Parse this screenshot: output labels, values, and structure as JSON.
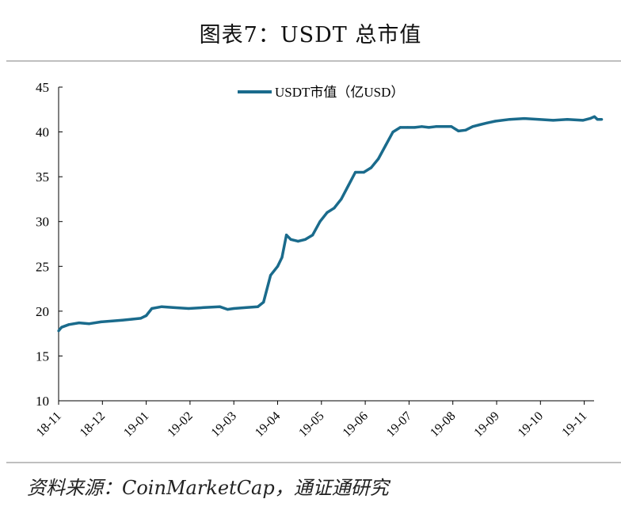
{
  "figure": {
    "title": "图表7：USDT 总市值",
    "source": "资料来源：CoinMarketCap，通证通研究"
  },
  "chart_data": {
    "type": "line",
    "title": "图表7：USDT 总市值",
    "xlabel": "",
    "ylabel": "",
    "ylim": [
      10,
      45
    ],
    "yticks": [
      10,
      15,
      20,
      25,
      30,
      35,
      40,
      45
    ],
    "xticks": [
      "18-11",
      "18-12",
      "19-01",
      "19-02",
      "19-03",
      "19-04",
      "19-05",
      "19-06",
      "19-07",
      "19-08",
      "19-09",
      "19-10",
      "19-11"
    ],
    "grid": false,
    "legend": "top-center",
    "series": [
      {
        "name": "USDT市值（亿USD）",
        "color": "#1a6b8c",
        "x": [
          "2018-11-01",
          "2018-11-03",
          "2018-11-08",
          "2018-11-15",
          "2018-11-22",
          "2018-11-30",
          "2018-12-08",
          "2018-12-15",
          "2018-12-22",
          "2018-12-28",
          "2019-01-01",
          "2019-01-05",
          "2019-01-12",
          "2019-01-20",
          "2019-01-31",
          "2019-02-10",
          "2019-02-20",
          "2019-02-25",
          "2019-03-01",
          "2019-03-10",
          "2019-03-18",
          "2019-03-22",
          "2019-03-27",
          "2019-04-01",
          "2019-04-04",
          "2019-04-07",
          "2019-04-10",
          "2019-04-15",
          "2019-04-20",
          "2019-04-25",
          "2019-04-30",
          "2019-05-05",
          "2019-05-10",
          "2019-05-15",
          "2019-05-20",
          "2019-05-25",
          "2019-05-31",
          "2019-06-05",
          "2019-06-10",
          "2019-06-15",
          "2019-06-20",
          "2019-06-25",
          "2019-06-30",
          "2019-07-05",
          "2019-07-10",
          "2019-07-15",
          "2019-07-20",
          "2019-07-31",
          "2019-08-05",
          "2019-08-10",
          "2019-08-15",
          "2019-08-20",
          "2019-08-25",
          "2019-08-31",
          "2019-09-10",
          "2019-09-20",
          "2019-09-30",
          "2019-10-10",
          "2019-10-20",
          "2019-10-31",
          "2019-11-05",
          "2019-11-08",
          "2019-11-10",
          "2019-11-13"
        ],
        "values": [
          17.8,
          18.2,
          18.5,
          18.7,
          18.6,
          18.8,
          18.9,
          19.0,
          19.1,
          19.2,
          19.5,
          20.3,
          20.5,
          20.4,
          20.3,
          20.4,
          20.5,
          20.2,
          20.3,
          20.4,
          20.5,
          21.0,
          24.0,
          25.0,
          26.0,
          28.5,
          28.0,
          27.8,
          28.0,
          28.5,
          30.0,
          31.0,
          31.5,
          32.5,
          34.0,
          35.5,
          35.5,
          36.0,
          37.0,
          38.5,
          40.0,
          40.5,
          40.5,
          40.5,
          40.6,
          40.5,
          40.6,
          40.6,
          40.1,
          40.2,
          40.6,
          40.8,
          41.0,
          41.2,
          41.4,
          41.5,
          41.4,
          41.3,
          41.4,
          41.3,
          41.5,
          41.7,
          41.4,
          41.4
        ]
      }
    ]
  }
}
